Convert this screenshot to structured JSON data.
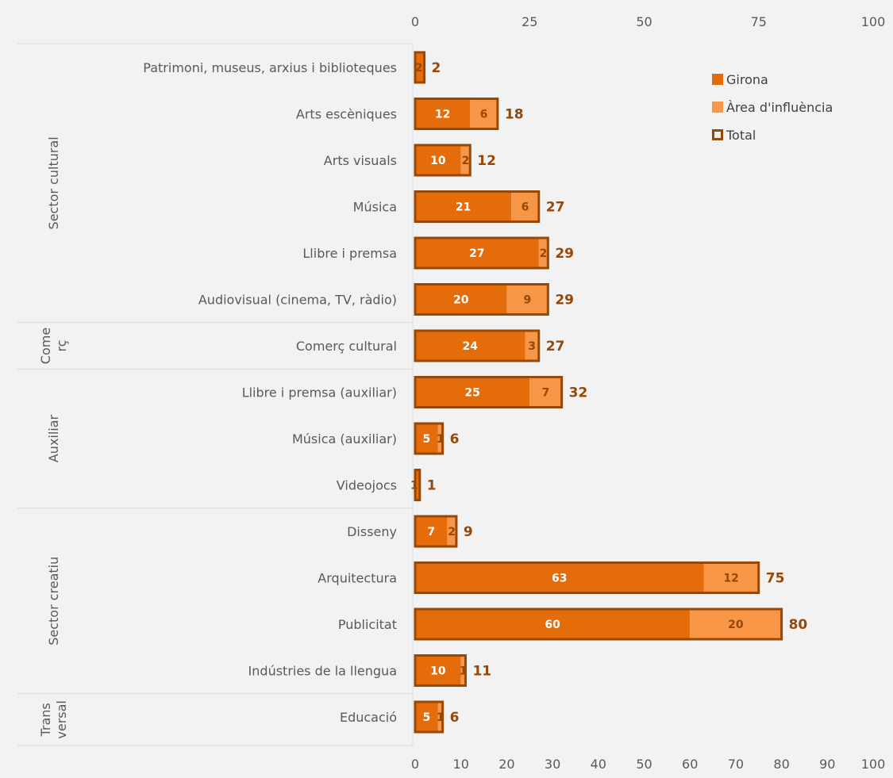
{
  "chart_data": {
    "type": "bar",
    "orientation": "horizontal",
    "stacked": true,
    "categories": [
      "Patrimoni, museus, arxius i biblioteques",
      "Arts escèniques",
      "Arts visuals",
      "Música",
      "Llibre i premsa",
      "Audiovisual (cinema, TV, ràdio)",
      "Comerç cultural",
      "Llibre i premsa (auxiliar)",
      "Música (auxiliar)",
      "Videojocs",
      "Disseny",
      "Arquitectura",
      "Publicitat",
      "Indústries de la llengua",
      "Educació"
    ],
    "series": [
      {
        "name": "Girona",
        "values": [
          2,
          12,
          10,
          21,
          27,
          20,
          24,
          25,
          5,
          1,
          7,
          63,
          60,
          10,
          5
        ]
      },
      {
        "name": "Àrea d'influència",
        "values": [
          0,
          6,
          2,
          6,
          2,
          9,
          3,
          7,
          1,
          0,
          2,
          12,
          20,
          1,
          1
        ]
      },
      {
        "name": "Total",
        "values": [
          2,
          18,
          12,
          27,
          29,
          29,
          27,
          32,
          6,
          1,
          9,
          75,
          80,
          11,
          6
        ]
      }
    ],
    "segment_labels": {
      "girona": [
        "2",
        "12",
        "10",
        "21",
        "27",
        "20",
        "24",
        "25",
        "5",
        "1",
        "7",
        "63",
        "60",
        "10",
        "5"
      ],
      "area": [
        "",
        "6",
        "2",
        "6",
        "2",
        "9",
        "3",
        "7",
        "1",
        "",
        "2",
        "12",
        "20",
        "1",
        "1"
      ]
    },
    "groups": [
      {
        "label": "Sector cultural",
        "lines": [
          "Sector cultural"
        ],
        "start": 0,
        "end": 5
      },
      {
        "label": "Comerç",
        "lines": [
          "Come",
          "rç"
        ],
        "start": 6,
        "end": 6
      },
      {
        "label": "Auxiliar",
        "lines": [
          "Auxiliar"
        ],
        "start": 7,
        "end": 9
      },
      {
        "label": "Sector creatiu",
        "lines": [
          "Sector creatiu"
        ],
        "start": 10,
        "end": 13
      },
      {
        "label": "Transversal",
        "lines": [
          "Trans",
          "versal"
        ],
        "start": 14,
        "end": 14
      }
    ],
    "top_axis": {
      "ticks": [
        "0",
        "25",
        "50",
        "75",
        "100"
      ],
      "values": [
        0,
        25,
        50,
        75,
        100
      ]
    },
    "bottom_axis": {
      "ticks": [
        "0",
        "10",
        "20",
        "30",
        "40",
        "50",
        "60",
        "70",
        "80",
        "90",
        "100"
      ],
      "values": [
        0,
        10,
        20,
        30,
        40,
        50,
        60,
        70,
        80,
        90,
        100
      ]
    },
    "xlim": [
      0,
      100
    ],
    "grid": false,
    "legend": {
      "position": "top-right",
      "items": [
        {
          "label": "Girona",
          "marker": "filled",
          "color": "#e46c0a"
        },
        {
          "label": "Àrea d'influència",
          "marker": "filled",
          "color": "#f79646"
        },
        {
          "label": "Total",
          "marker": "outline",
          "color": "#974706"
        }
      ]
    },
    "colors": {
      "girona": "#e46c0a",
      "area": "#f79646",
      "total_outline": "#974706",
      "total_label": "#974706",
      "girona_label": "#ffffff",
      "area_label": "#974706"
    }
  }
}
